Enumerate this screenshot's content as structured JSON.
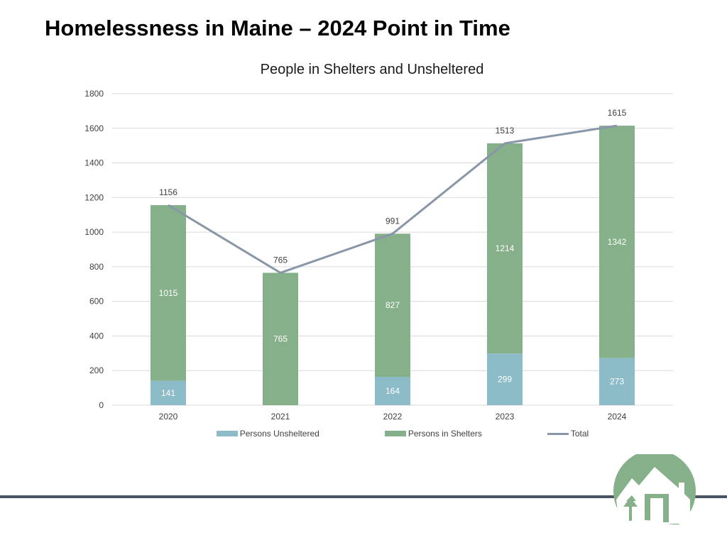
{
  "slide": {
    "title": "Homelessness in Maine – 2024 Point in Time"
  },
  "colors": {
    "unsheltered": "#8bbcc8",
    "sheltered": "#86b08a",
    "total": "#8896a8",
    "grid": "#d9d9d9",
    "footer_line": "#4a5563",
    "logo_green": "#86b08a"
  },
  "legend": {
    "unsheltered": "Persons Unsheltered",
    "sheltered": "Persons in Shelters",
    "total": "Total"
  },
  "logo": {
    "icon": "house-trees-logo-icon"
  },
  "chart_data": {
    "type": "bar",
    "stacked": true,
    "title": "People in Shelters and Unsheltered",
    "xlabel": "",
    "ylabel": "",
    "categories": [
      "2020",
      "2021",
      "2022",
      "2023",
      "2024"
    ],
    "ylim": [
      0,
      1800
    ],
    "yticks": [
      0,
      200,
      400,
      600,
      800,
      1000,
      1200,
      1400,
      1600,
      1800
    ],
    "grid": true,
    "legend_position": "bottom",
    "series": [
      {
        "name": "Persons Unsheltered",
        "type": "bar",
        "values": [
          141,
          null,
          164,
          299,
          273
        ]
      },
      {
        "name": "Persons in Shelters",
        "type": "bar",
        "values": [
          1015,
          765,
          827,
          1214,
          1342
        ]
      },
      {
        "name": "Total",
        "type": "line",
        "values": [
          1156,
          765,
          991,
          1513,
          1615
        ]
      }
    ]
  }
}
